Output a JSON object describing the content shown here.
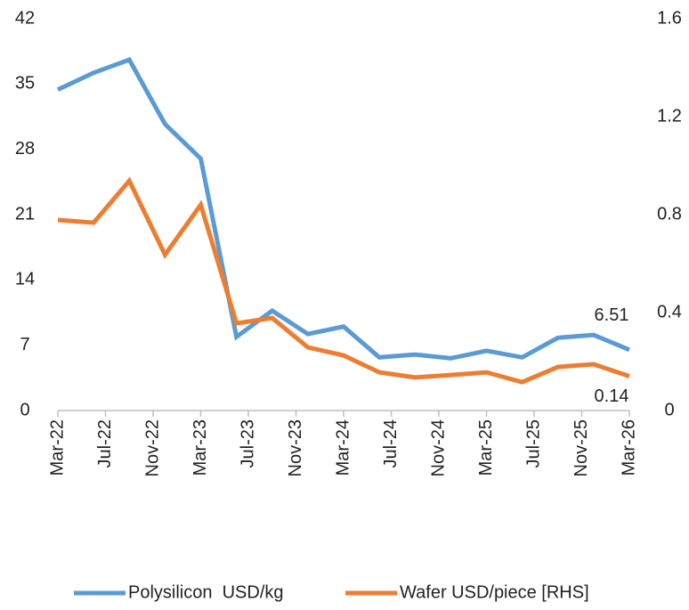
{
  "chart_data": {
    "type": "line",
    "x": [
      "Mar-22",
      "Jun-22",
      "Sep-22",
      "Dec-22",
      "Mar-23",
      "Jun-23",
      "Sep-23",
      "Dec-23",
      "Mar-24",
      "Jun-24",
      "Sep-24",
      "Dec-24",
      "Mar-25",
      "Jun-25",
      "Sep-25",
      "Dec-25",
      "Mar-26"
    ],
    "xlim": [
      "Mar-22",
      "Mar-26"
    ],
    "xticks": [
      "Mar-22",
      "Jul-22",
      "Nov-22",
      "Mar-23",
      "Jul-23",
      "Nov-23",
      "Mar-24",
      "Jul-24",
      "Nov-24",
      "Mar-25",
      "Jul-25",
      "Nov-25",
      "Mar-26"
    ],
    "ylim": [
      0,
      42
    ],
    "yticks": [
      0,
      7,
      14,
      21,
      28,
      35,
      42
    ],
    "y2lim": [
      0,
      1.6
    ],
    "y2ticks": [
      0,
      0.4,
      0.8,
      1.2,
      1.6
    ],
    "legend": "bottom",
    "series": [
      {
        "name": "Polysilicon  USD/kg",
        "color": "#5b9bd5",
        "values": [
          34.4,
          36.2,
          37.6,
          30.7,
          27.0,
          7.9,
          10.7,
          8.2,
          9.0,
          5.7,
          6.0,
          5.6,
          6.4,
          5.7,
          7.8,
          8.1,
          6.51
        ]
      },
      {
        "name": "Wafer USD/piece [RHS]",
        "color": "#ed7d31",
        "axis": "y2",
        "values": [
          0.778,
          0.767,
          0.938,
          0.636,
          0.84,
          0.356,
          0.378,
          0.258,
          0.225,
          0.156,
          0.135,
          0.145,
          0.156,
          0.116,
          0.178,
          0.189,
          0.14
        ]
      }
    ]
  }
}
